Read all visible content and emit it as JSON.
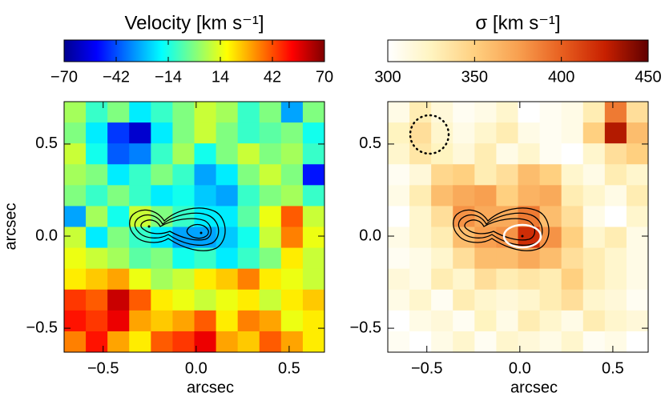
{
  "chart_data": [
    {
      "type": "heatmap",
      "colorbar_label": "Velocity  [km s⁻¹]",
      "zlim": [
        -70,
        70
      ],
      "colorbar_ticks": [
        {
          "value": -70,
          "label": "−70"
        },
        {
          "value": -42,
          "label": "−42"
        },
        {
          "value": -14,
          "label": "−14"
        },
        14,
        42,
        70
      ],
      "colors": [
        "#00008f",
        "#0000ff",
        "#0080ff",
        "#00ffff",
        "#80ff80",
        "#ffff00",
        "#ff8000",
        "#ff0000",
        "#800000"
      ],
      "xlim": [
        -0.71,
        0.69
      ],
      "ylim": [
        -0.63,
        0.73
      ],
      "xticks": [
        {
          "value": -0.5,
          "label": "−0.5"
        },
        {
          "value": 0,
          "label": "0.0"
        },
        0.5
      ],
      "yticks": [
        {
          "value": -0.5,
          "label": "−0.5"
        },
        {
          "value": 0,
          "label": "0.0"
        },
        0.5
      ],
      "xlabel": "arcsec",
      "ylabel": "arcsec",
      "z": [
        [
          5,
          -10,
          0,
          -20,
          -10,
          0,
          10,
          5,
          -10,
          0,
          -30,
          0
        ],
        [
          0,
          -20,
          -45,
          -60,
          -20,
          0,
          10,
          0,
          -10,
          -5,
          0,
          -15
        ],
        [
          10,
          -15,
          -40,
          -35,
          -10,
          5,
          -15,
          0,
          10,
          0,
          5,
          -10
        ],
        [
          5,
          0,
          -20,
          -10,
          0,
          -10,
          -30,
          -20,
          0,
          10,
          0,
          -50
        ],
        [
          0,
          -10,
          0,
          -10,
          -20,
          -15,
          -25,
          -30,
          -10,
          0,
          5,
          -10
        ],
        [
          -30,
          5,
          -15,
          10,
          0,
          -10,
          -20,
          -20,
          -5,
          15,
          40,
          10
        ],
        [
          10,
          -20,
          0,
          -10,
          -20,
          -30,
          -30,
          -25,
          -15,
          10,
          35,
          15
        ],
        [
          15,
          10,
          5,
          -5,
          0,
          -15,
          -10,
          -20,
          -10,
          0,
          20,
          10
        ],
        [
          20,
          25,
          30,
          15,
          5,
          10,
          20,
          25,
          35,
          20,
          15,
          10
        ],
        [
          45,
          40,
          60,
          40,
          20,
          15,
          10,
          15,
          20,
          10,
          20,
          25
        ],
        [
          50,
          45,
          55,
          30,
          25,
          30,
          40,
          20,
          35,
          30,
          15,
          20
        ],
        [
          35,
          50,
          30,
          20,
          40,
          45,
          55,
          30,
          25,
          40,
          30,
          20
        ]
      ]
    },
    {
      "type": "heatmap",
      "colorbar_label": "σ  [km s⁻¹]",
      "zlim": [
        300,
        450
      ],
      "colorbar_ticks": [
        300,
        350,
        400,
        450
      ],
      "colors": [
        "#ffffff",
        "#fff4c0",
        "#ffd080",
        "#f8a050",
        "#e86020",
        "#c82000",
        "#600000"
      ],
      "xlim": [
        -0.71,
        0.69
      ],
      "ylim": [
        -0.63,
        0.73
      ],
      "xticks": [
        {
          "value": -0.5,
          "label": "−0.5"
        },
        {
          "value": 0,
          "label": "0.0"
        },
        0.5
      ],
      "yticks": [
        {
          "value": -0.5,
          "label": "−0.5"
        },
        {
          "value": 0,
          "label": "0.0"
        },
        0.5
      ],
      "xlabel": "arcsec",
      "z": [
        [
          310,
          330,
          315,
          305,
          310,
          320,
          300,
          305,
          310,
          330,
          390,
          340
        ],
        [
          325,
          340,
          320,
          310,
          320,
          330,
          310,
          305,
          310,
          350,
          430,
          360
        ],
        [
          320,
          335,
          325,
          315,
          330,
          310,
          320,
          305,
          300,
          320,
          340,
          350
        ],
        [
          305,
          315,
          345,
          350,
          330,
          340,
          360,
          350,
          320,
          310,
          330,
          320
        ],
        [
          310,
          330,
          360,
          370,
          375,
          350,
          365,
          370,
          330,
          320,
          310,
          330
        ],
        [
          300,
          320,
          340,
          380,
          370,
          370,
          390,
          360,
          340,
          310,
          300,
          320
        ],
        [
          310,
          320,
          330,
          360,
          375,
          380,
          420,
          380,
          350,
          320,
          330,
          310
        ],
        [
          305,
          310,
          320,
          340,
          360,
          360,
          370,
          360,
          340,
          330,
          320,
          310
        ],
        [
          315,
          310,
          330,
          320,
          340,
          330,
          335,
          330,
          350,
          330,
          320,
          310
        ],
        [
          310,
          320,
          305,
          330,
          320,
          315,
          320,
          330,
          340,
          320,
          315,
          305
        ],
        [
          300,
          310,
          315,
          305,
          325,
          310,
          330,
          320,
          310,
          330,
          320,
          315
        ],
        [
          305,
          300,
          310,
          320,
          305,
          320,
          315,
          310,
          320,
          305,
          310,
          300
        ]
      ]
    }
  ]
}
